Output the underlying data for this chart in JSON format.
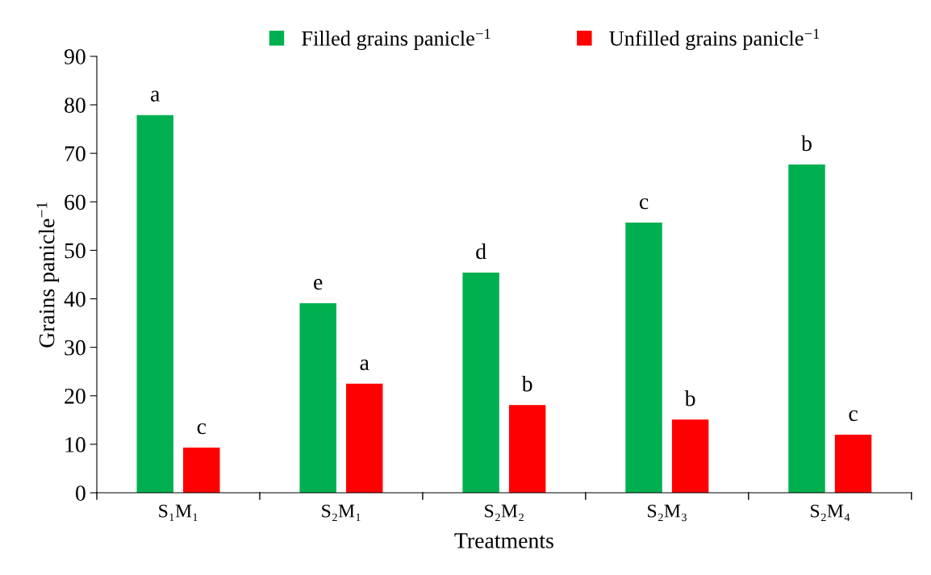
{
  "chart_data": {
    "type": "bar",
    "xlabel": "Treatments",
    "ylabel": "Grains panicle$^{−1}$",
    "categories": [
      "S₁M₁",
      "S₂M₁",
      "S₂M₂",
      "S₂M₃",
      "S₂M₄"
    ],
    "series": [
      {
        "name": "Filled grains panicle$^{−1}$",
        "color": "#00b050",
        "values": [
          77.9,
          39.1,
          45.4,
          55.7,
          67.7
        ],
        "value_labels": [
          "a",
          "e",
          "d",
          "c",
          "b"
        ]
      },
      {
        "name": "Unfilled grains panicle$^{−1}$",
        "color": "#ff0000",
        "values": [
          9.3,
          22.5,
          18.1,
          15.1,
          12.0
        ],
        "value_labels": [
          "c",
          "a",
          "b",
          "b",
          "c"
        ]
      }
    ],
    "ylim": [
      0,
      90
    ],
    "yticks": [
      0,
      10,
      20,
      30,
      40,
      50,
      60,
      70,
      80,
      90
    ],
    "grid": false,
    "legend": "top"
  }
}
